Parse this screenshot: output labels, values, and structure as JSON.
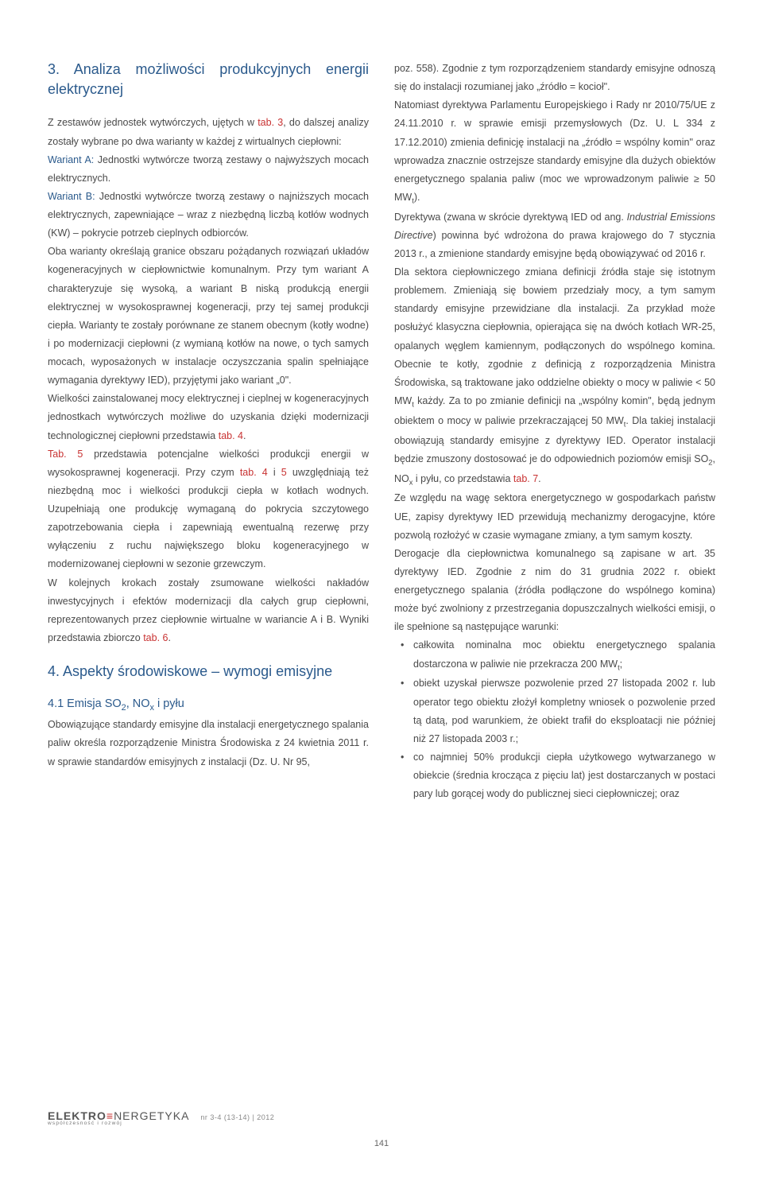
{
  "left": {
    "h_section3": "3. Analiza możliwości produkcyjnych energii elektrycznej",
    "p1a": "Z zestawów jednostek wytwórczych, ujętych w ",
    "p1b": "tab. 3",
    "p1c": ", do dalszej analizy zostały wybrane po dwa warianty w każdej z wirtualnych ciepłowni:",
    "p2a": "Wariant A:",
    "p2b": " Jednostki wytwórcze tworzą zestawy o najwyższych mocach elektrycznych.",
    "p3a": "Wariant B:",
    "p3b": " Jednostki wytwórcze tworzą zestawy o najniższych mocach elektrycznych, zapewniające – wraz z niezbędną liczbą kotłów wodnych (KW) – pokrycie potrzeb cieplnych odbiorców.",
    "p4": "Oba warianty określają granice obszaru pożądanych rozwiązań układów kogeneracyjnych w ciepłownictwie komunalnym. Przy tym wariant A charakteryzuje się wysoką, a wariant B niską produkcją energii elektrycznej w wysokosprawnej kogeneracji, przy tej samej produkcji ciepła. Warianty te zostały porównane ze stanem obecnym (kotły wodne) i po modernizacji ciepłowni (z wymianą kotłów na nowe, o tych samych mocach, wyposażonych w instalacje oczyszczania spalin spełniające wymagania dyrektywy IED), przyjętymi jako wariant „0\".",
    "p5a": "Wielkości zainstalowanej mocy elektrycznej i cieplnej w kogeneracyjnych jednostkach wytwórczych możliwe do uzyskania dzięki modernizacji technologicznej ciepłowni przedstawia ",
    "p5b": "tab. 4",
    "p5c": ".",
    "p6a": "Tab. 5",
    "p6b": " przedstawia potencjalne wielkości produkcji energii w wysokosprawnej kogeneracji. Przy czym ",
    "p6c": "tab. 4",
    "p6d": " i ",
    "p6e": "5",
    "p6f": " uwzględniają też niezbędną moc i wielkości produkcji ciepła w kotłach wodnych. Uzupełniają one produkcję wymaganą do pokrycia szczytowego zapotrzebowania ciepła i zapewniają ewentualną rezerwę przy wyłączeniu z ruchu największego bloku kogeneracyjnego w modernizowanej ciepłowni w sezonie grzewczym.",
    "p7a": "W kolejnych krokach zostały zsumowane wielkości nakładów inwestycyjnych i efektów modernizacji dla całych grup ciepłowni, reprezentowanych przez ciepłownie wirtualne w wariancie A i B. Wyniki przedstawia zbiorczo ",
    "p7b": "tab. 6",
    "p7c": ".",
    "h_section4": "4. Aspekty środowiskowe – wymogi emisyjne",
    "h_sub41a": "4.1 Emisja SO",
    "h_sub41a2": "2",
    "h_sub41b": ", NO",
    "h_sub41b2": "x",
    "h_sub41c": " i pyłu",
    "p8": "Obowiązujące standardy emisyjne dla instalacji energetycznego spalania paliw określa rozporządzenie Ministra Środowiska z 24 kwietnia 2011 r. w sprawie standardów emisyjnych z instalacji (Dz. U. Nr 95,"
  },
  "right": {
    "p1": "poz. 558). Zgodnie z tym rozporządzeniem standardy emisyjne odnoszą się do instalacji rozumianej jako „źródło = kocioł\".",
    "p2a": "Natomiast dyrektywa Parlamentu Europejskiego i Rady nr 2010/75/UE z 24.11.2010 r. w sprawie emisji przemysłowych (Dz. U. L 334 z 17.12.2010) zmienia definicję instalacji na „źródło = wspólny komin\" oraz wprowadza znacznie ostrzejsze standardy emisyjne dla dużych obiektów energetycznego spalania paliw (moc we wprowadzonym paliwie ≥ 50 MW",
    "p2at": "t",
    "p2b": ").",
    "p3a": "Dyrektywa (zwana w skrócie dyrektywą IED od ang. ",
    "p3i": "Industrial Emissions Directive",
    "p3b": ") powinna być wdrożona do prawa krajowego do 7 stycznia 2013 r., a zmienione standardy emisyjne będą obowiązywać od 2016 r.",
    "p4a": "Dla sektora ciepłowniczego zmiana definicji źródła staje się istotnym problemem. Zmieniają się bowiem przedziały mocy, a tym samym standardy emisyjne przewidziane dla instalacji. Za przykład może posłużyć klasyczna ciepłownia, opierająca się na dwóch kotłach WR-25, opalanych węglem kamiennym, podłączonych do wspólnego komina. Obecnie te kotły, zgodnie z definicją z rozporządzenia Ministra Środowiska, są traktowane jako oddzielne obiekty o mocy w paliwie < 50 MW",
    "p4at": "t",
    "p4b": " każdy. Za to po zmianie definicji na „wspólny komin\", będą jednym obiektem o mocy w paliwie przekraczającej 50 MW",
    "p4bt": "t",
    "p4c": ". Dla takiej instalacji obowiązują standardy emisyjne z dyrektywy IED. Operator instalacji będzie zmuszony dostosować je do odpowiednich poziomów emisji SO",
    "p4c2": "2",
    "p4d": ", NO",
    "p4dx": "x",
    "p4e": " i pyłu, co przedstawia ",
    "p4f": "tab. 7",
    "p4g": ".",
    "p5": "Ze względu na wagę sektora energetycznego w gospodarkach państw UE, zapisy dyrektywy IED przewidują mechanizmy derogacyjne, które pozwolą rozłożyć w czasie wymagane zmiany, a tym samym koszty.",
    "p6": "Derogacje dla ciepłownictwa komunalnego są zapisane w art. 35 dyrektywy IED. Zgodnie z nim do 31 grudnia 2022 r. obiekt energetycznego spalania (źródła podłączone do wspólnego komina) może być zwolniony z przestrzegania dopuszczalnych wielkości emisji, o ile spełnione są następujące warunki:",
    "b1a": "całkowita nominalna moc obiektu energetycznego spalania dostarczona w paliwie nie przekracza 200 MW",
    "b1t": "t",
    "b1b": ";",
    "b2": "obiekt uzyskał pierwsze pozwolenie przed 27 listopada 2002 r. lub operator tego obiektu złożył kompletny wniosek o pozwolenie przed tą datą, pod warunkiem, że obiekt trafił do eksploatacji nie później niż 27 listopada 2003 r.;",
    "b3": "co najmniej 50% produkcji ciepła użytkowego wytwarzanego w obiekcie (średnia krocząca z pięciu lat) jest dostarczanych w postaci pary lub gorącej wody do publicznej sieci ciepłowniczej; oraz"
  },
  "footer": {
    "brand1": "ELEKTRO",
    "brand2": "NERGETYKA",
    "brandsub": "współczesność i rozwój",
    "issue": "nr 3-4 (13-14) | 2012",
    "page": "141"
  },
  "colors": {
    "heading": "#2b5a8c",
    "ref": "#c83232",
    "body": "#4a4a4a"
  }
}
